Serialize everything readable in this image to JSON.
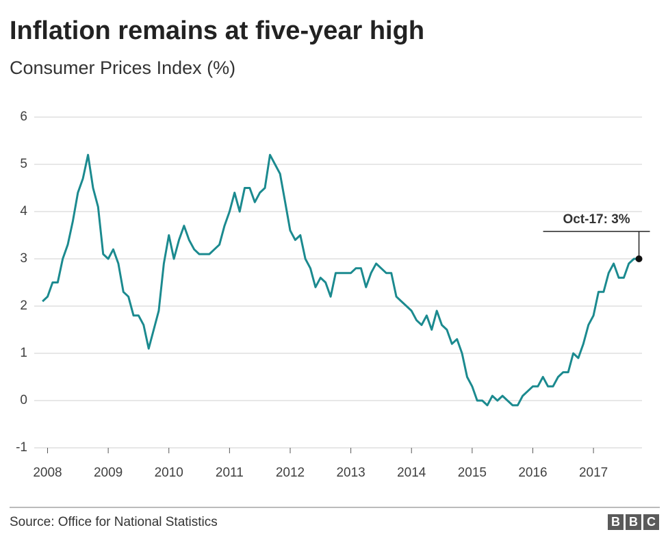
{
  "chart_data": {
    "type": "line",
    "title": "Inflation remains at five-year high",
    "subtitle": "Consumer Prices Index (%)",
    "source": "Source: Office for National Statistics",
    "logo": [
      "B",
      "B",
      "C"
    ],
    "annotation": "Oct-17: 3%",
    "grid": true,
    "xlim": [
      2007.78,
      2017.8
    ],
    "xticks": [
      2008,
      2009,
      2010,
      2011,
      2012,
      2013,
      2014,
      2015,
      2016,
      2017
    ],
    "ylim": [
      -1,
      6
    ],
    "yticks": [
      -1,
      0,
      1,
      2,
      3,
      4,
      5,
      6
    ],
    "x": [
      2007.917,
      2008,
      2008.083,
      2008.167,
      2008.25,
      2008.333,
      2008.417,
      2008.5,
      2008.583,
      2008.667,
      2008.75,
      2008.833,
      2008.917,
      2009,
      2009.083,
      2009.167,
      2009.25,
      2009.333,
      2009.417,
      2009.5,
      2009.583,
      2009.667,
      2009.75,
      2009.833,
      2009.917,
      2010,
      2010.083,
      2010.167,
      2010.25,
      2010.333,
      2010.417,
      2010.5,
      2010.583,
      2010.667,
      2010.75,
      2010.833,
      2010.917,
      2011,
      2011.083,
      2011.167,
      2011.25,
      2011.333,
      2011.417,
      2011.5,
      2011.583,
      2011.667,
      2011.75,
      2011.833,
      2011.917,
      2012,
      2012.083,
      2012.167,
      2012.25,
      2012.333,
      2012.417,
      2012.5,
      2012.583,
      2012.667,
      2012.75,
      2012.833,
      2012.917,
      2013,
      2013.083,
      2013.167,
      2013.25,
      2013.333,
      2013.417,
      2013.5,
      2013.583,
      2013.667,
      2013.75,
      2013.833,
      2013.917,
      2014,
      2014.083,
      2014.167,
      2014.25,
      2014.333,
      2014.417,
      2014.5,
      2014.583,
      2014.667,
      2014.75,
      2014.833,
      2014.917,
      2015,
      2015.083,
      2015.167,
      2015.25,
      2015.333,
      2015.417,
      2015.5,
      2015.583,
      2015.667,
      2015.75,
      2015.833,
      2015.917,
      2016,
      2016.083,
      2016.167,
      2016.25,
      2016.333,
      2016.417,
      2016.5,
      2016.583,
      2016.667,
      2016.75,
      2016.833,
      2016.917,
      2017,
      2017.083,
      2017.167,
      2017.25,
      2017.333,
      2017.417,
      2017.5,
      2017.583,
      2017.667,
      2017.75
    ],
    "series": [
      {
        "name": "CPI",
        "color": "#1b8a8f",
        "values": [
          2.1,
          2.2,
          2.5,
          2.5,
          3.0,
          3.3,
          3.8,
          4.4,
          4.7,
          5.2,
          4.5,
          4.1,
          3.1,
          3.0,
          3.2,
          2.9,
          2.3,
          2.2,
          1.8,
          1.8,
          1.6,
          1.1,
          1.5,
          1.9,
          2.9,
          3.5,
          3.0,
          3.4,
          3.7,
          3.4,
          3.2,
          3.1,
          3.1,
          3.1,
          3.2,
          3.3,
          3.7,
          4.0,
          4.4,
          4.0,
          4.5,
          4.5,
          4.2,
          4.4,
          4.5,
          5.2,
          5.0,
          4.8,
          4.2,
          3.6,
          3.4,
          3.5,
          3.0,
          2.8,
          2.4,
          2.6,
          2.5,
          2.2,
          2.7,
          2.7,
          2.7,
          2.7,
          2.8,
          2.8,
          2.4,
          2.7,
          2.9,
          2.8,
          2.7,
          2.7,
          2.2,
          2.1,
          2.0,
          1.9,
          1.7,
          1.6,
          1.8,
          1.5,
          1.9,
          1.6,
          1.5,
          1.2,
          1.3,
          1.0,
          0.5,
          0.3,
          0.0,
          0.0,
          -0.1,
          0.1,
          0.0,
          0.1,
          0.0,
          -0.1,
          -0.1,
          0.1,
          0.2,
          0.3,
          0.3,
          0.5,
          0.3,
          0.3,
          0.5,
          0.6,
          0.6,
          1.0,
          0.9,
          1.2,
          1.6,
          1.8,
          2.3,
          2.3,
          2.7,
          2.9,
          2.6,
          2.6,
          2.9,
          3.0,
          3.0
        ]
      }
    ]
  }
}
